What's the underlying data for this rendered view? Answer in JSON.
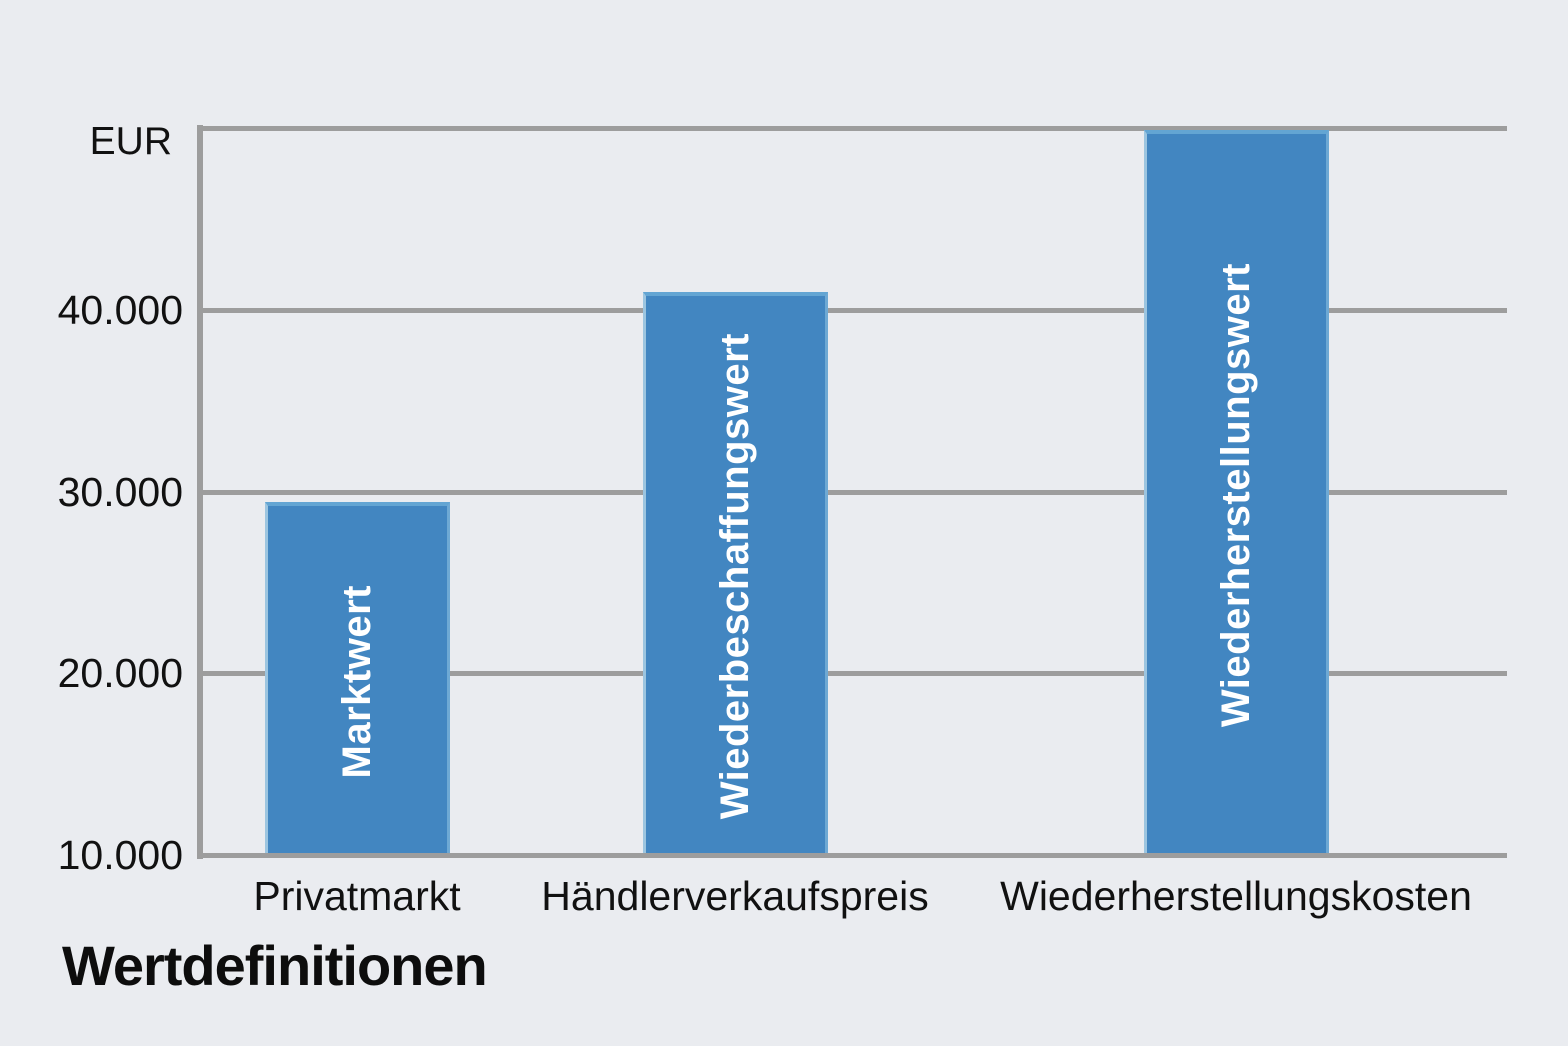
{
  "chart_data": {
    "type": "bar",
    "title": "Wertdefinitionen",
    "unit_label": "EUR",
    "categories": [
      "Privatmarkt",
      "Händlerverkaufspreis",
      "Wiederherstellungskosten"
    ],
    "bar_value_labels": [
      "Marktwert",
      "Wiederbeschaffungswert",
      "Wiederherstellungswert"
    ],
    "values": [
      29400,
      41000,
      49900
    ],
    "ylim": [
      10000,
      50000
    ],
    "y_ticks": [
      {
        "value": 10000,
        "label": "10.000"
      },
      {
        "value": 20000,
        "label": "20.000"
      },
      {
        "value": 30000,
        "label": "30.000"
      },
      {
        "value": 40000,
        "label": "40.000"
      }
    ],
    "grid": true,
    "legend": false,
    "xlabel": "",
    "ylabel": "EUR",
    "colors": {
      "background": "#eaecf0",
      "bar_fill": "#4286c1",
      "bar_edge_top": "#63a5d3",
      "bar_edge_left": "#9cc5e0",
      "bar_edge_right": "#6ea9d4",
      "gridline": "#9d9d9d",
      "text": "#111111",
      "bar_label_text": "#ffffff"
    }
  }
}
